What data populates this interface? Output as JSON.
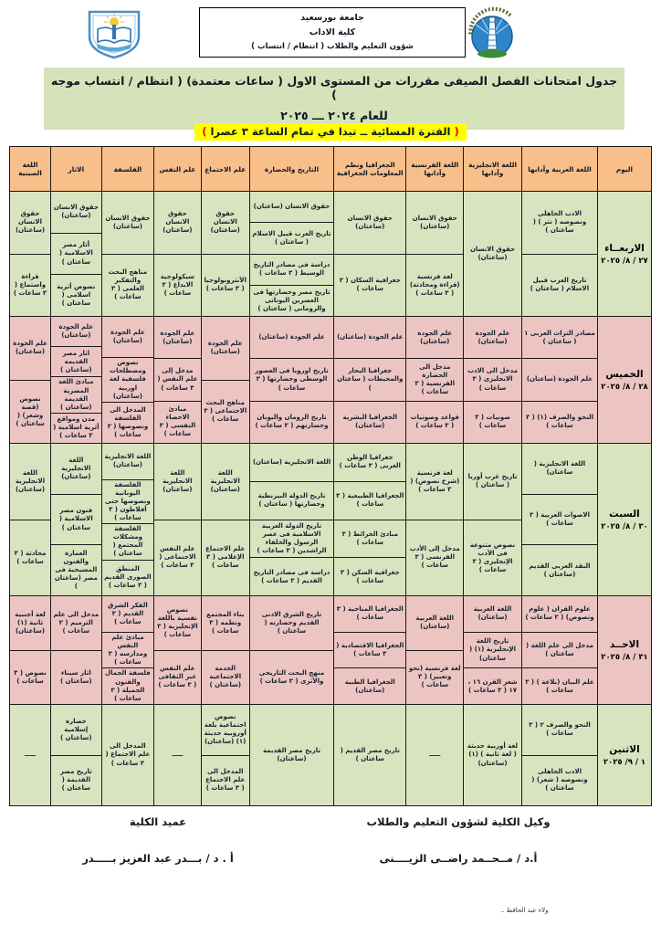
{
  "header": {
    "university": "جامعة بورسعيد",
    "faculty": "كلية الاداب",
    "department": "شؤون التعليم والطلاب ( انتظام / انتساب )"
  },
  "icons": {
    "left_emblem": "university-shield-book-emblem",
    "right_emblem": "faculty-lighthouse-circle-logo"
  },
  "title": {
    "line1": "جدول امتحانات  الفصل الصيفى مقررات من المستوى الاول ( ساعات معتمدة) ( انتظام / انتساب موجه )",
    "line2": "للعام ٢٠٢٤ ـــ ٢٠٢٥",
    "period_open": "(",
    "period_text": " الفترة المسائية ــ تبدا في تمام الساعة ٣ عصرا ",
    "period_close": ")"
  },
  "colors": {
    "header_orange": "#f9bf8b",
    "row_green": "#d8e4c0",
    "row_pink": "#ecc5c3",
    "band_green": "#d6e2ba",
    "highlight_yellow": "#ffff00",
    "paren_red": "#ff0000"
  },
  "table": {
    "day_header": "اليوم",
    "columns": [
      "اللغة العربية وآدابها",
      "اللغة الانجليزية وآدابها",
      "اللغة الفرنسية وآدابها",
      "الجغرافيا ونظم المعلومات الجغرافية",
      "التاريخ والحضارة",
      "علم الاجتماع",
      "علم النفس",
      "الفلسفة",
      "الاثار",
      "اللغة الصينية"
    ],
    "rows": [
      {
        "day": "الاربعــاء",
        "date": "٢٧ / ٨/ ٢٠٢٥",
        "tone": "green",
        "cells": [
          [
            "الادب الجاهلى ونصوصه ( نثر ) ( ساعتان )",
            "تاريخ العرب قبيل الاسلام ( ساعتان )"
          ],
          [
            "حقوق الانسان (ساعتان)"
          ],
          [
            "حقوق الانسان (ساعتان)",
            "لغة فرنسية (قراءة ومحادثة) ( ٣ ساعات )"
          ],
          [
            "حقوق الانسان (ساعتان)",
            "جغرافية السكان ( ٣ ساعات )"
          ],
          [
            "حقوق الانسان (ساعتان)",
            "تاريخ العرب قبيل الاسلام ( ساعتان )",
            "دراسة فى مصادر التاريخ الوسيط ( ٣ ساعات )",
            "تاريخ مصر وحضارتها فى العصرين اليونانى والرومانى ( ساعتان )"
          ],
          [
            "حقوق الانسان (ساعتان)",
            "الأنثروبولوجيا ( ٣ ساعات )"
          ],
          [
            "حقوق الانسان (ساعتان)",
            "سيكولوجية الابداع ( ٣ ساعات )"
          ],
          [
            "حقوق الانسان (ساعتان)",
            "مناهج البحث والتفكير العلمى ( ٣ ساعات )"
          ],
          [
            "حقوق الانسان (ساعتان)",
            "أثار مصر الاسلامية ( ساعتان )",
            "نصوص أثرية اسلامى ( ساعتان )"
          ],
          [
            "حقوق الانسان (ساعتان)",
            "قراءة واستماع ( ٣ ساعات )"
          ]
        ]
      },
      {
        "day": "الخميس",
        "date": "٢٨ / ٨/ ٢٠٢٥",
        "tone": "pink",
        "cells": [
          [
            "مصادر التراث العربى ١ ( ساعتان )",
            "علم الجودة (ساعتان)",
            "النحو والصرف (١) ( ٣ ساعات )"
          ],
          [
            "علم الجودة (ساعتان)",
            "مدخل الى الادب الانجليزى ( ٣ ساعات )",
            "صوتيات ( ٣ ساعات )"
          ],
          [
            "علم الجودة (ساعتان)",
            "مدخل الى الحضارة الفرنسية ( ٣ ساعات )",
            "قواعد وصوتيات ( ٣ ساعات )"
          ],
          [
            "علم الجودة (ساعتان)",
            "جغرافيا البحار والمحيطات ( ساعتان )",
            "الجغرافيا البشرية (ساعتان)"
          ],
          [
            "علم الجودة (ساعتان)",
            "تاريخ اوروبا فى العصور الوسطى وحضارتها ( ٣ ساعات )",
            "تاريخ الرومان واليونان وحضارتهم ( ٣ ساعات )"
          ],
          [
            "علم الجودة (ساعتان)",
            "مناهج البحث الاجتماعى ( ٣ ساعات )"
          ],
          [
            "علم الجودة (ساعتان)",
            "مدخل إلى علم النفس ( ٣ ساعات )",
            "مبادئ الاحصاء النفسى ( ٣ ساعات )"
          ],
          [
            "علم الجودة (ساعتان)",
            "نصوص ومصطلحات فلسفية لغة اوربية (ساعتان)",
            "المدخل الى الفلسفة ونصوصها ( ٣ ساعات )"
          ],
          [
            "علم الجودة (ساعتان)",
            "اثار مصر القديمة (ساعتان )",
            "مبادئ اللغة المصرية القديمة (ساعتان )",
            "مدن ومواقع أثرية اسلامية ( ٣ ساعات )"
          ],
          [
            "علم الجودة (ساعتان)",
            "نصوص (قصة وشعر) ( ساعتان )"
          ]
        ]
      },
      {
        "day": "السبت",
        "date": "٣٠ / ٨/ ٢٠٢٥",
        "tone": "green",
        "cells": [
          [
            "اللغة الانجليزية ( ساعتان)",
            "الاصوات العربية ( ٣ ساعات )",
            "النقد العربى القديم (ساعتان )"
          ],
          [
            "تاريخ غرب أوربا ( ساعتان )",
            "نصوص متنوعة فى الأدب الإنجليزى ( ٣ ساعات )"
          ],
          [
            "لغة فرنسية (شرح نصوص) ( ٣ ساعات )",
            "مدخل إلى الأدب الفرنسى ( ٣ ساعات )"
          ],
          [
            "جغرافيا الوطن العربى ( ٣ ساعات )",
            "الجغرافيا الطبيعية ( ٣ ساعات )",
            "مبادئ الخرائط ( ٣ ساعات )",
            "جغرافية السكن ( ٣ ساعات )"
          ],
          [
            "اللغة الانجليزية (ساعتان)",
            "تاريخ الدولة البيزنطية وحضارتها ( ساعتان )",
            "تاريخ الدولة العربية الاسلامية فى عصر الرسول والخلفاء الراشدين ( ٣ ساعات )",
            "دراسة فى مصادر التاريخ القديم ( ٣ ساعات )"
          ],
          [
            "اللغة الانجليزية (ساعتان)",
            "علم الاجتماع الإعلامى ( ٣ ساعات )"
          ],
          [
            "اللغة الانجليزية (ساعتان)",
            "علم النفس الاجتماعى ( ٣ ساعات )"
          ],
          [
            "اللغة الانجليزية (ساعتان)",
            "الفلسفة اليونانية ونصوصها حتى أفلاطون ( ٣ ساعات )",
            "الفلسفة ومشكلات المجتمع ( ساعتان )",
            "المنطق الصورى القديم ( ٣ ساعات )"
          ],
          [
            "اللغة الانجليزية (ساعتان)",
            "فنون مصر الاسلامية ( ساعتان )",
            "العمارة والفنون المسيحية فى مصر (ساعتان )"
          ],
          [
            "اللغة الانجليزية (ساعتان)",
            "محادثة ( ٣ ساعات )"
          ]
        ]
      },
      {
        "day": "الاحــد",
        "date": "٣١ / ٨/ ٢٠٢٥",
        "tone": "pink",
        "cells": [
          [
            "علوم القران ( علوم ونصوص) ( ٣ ساعات )",
            "مدخل الى علم اللغة ( ساعتان )",
            "علم البيان (بلاغة ) ( ٣ ساعات )"
          ],
          [
            "اللغة العربية (ساعتان)",
            "تاريخ اللغة الإنجليزية (١) ( ساعتان)",
            "شعر القرن ١٦ ، ١٧ ( ٣ ساعات )"
          ],
          [
            "اللغة العربية (ساعتان)",
            "لغة فرنسية (نحو وتعبير) ( ٣ ساعات )"
          ],
          [
            "الجغرافيا المناخية ( ٣ ساعات )",
            "الجغرافيا الاقتصادية ( ٣ ساعات )",
            "الجغرافيا الطبية (ساعتان)"
          ],
          [
            "تاريخ الشرق الادنى القديم وحضارته ( ساعتان )",
            "منهج البحث التاريخى والأثرى ( ٣ ساعات )"
          ],
          [
            "بناء المجتمع ونظمه ( ٣ ساعات )",
            "الخدمة الاجتماعية (ساعتان )"
          ],
          [
            "نصوص نفسية باللغة الإنجليزية ( ٣ ساعات )",
            "علم النفس عبر الثقافى ( ٣ ساعات )"
          ],
          [
            "الفكر الشرق القديم ( ٣ ساعات )",
            "مبادئ علم النفس ومدارسه ( ٣ ساعات )",
            "فلسفة الجمال والفنون الجميلة ( ٣ ساعات )"
          ],
          [
            "مدخل الى علم الترميم ( ٣ ساعات )",
            "اثار سيناء (ساعتان )"
          ],
          [
            "لغة أجنبية ثانية (١) (ساعتان)",
            "نصوص ( ٣ ساعات )"
          ]
        ]
      },
      {
        "day": "الاثنين",
        "date": "١ / ٩/ ٢٠٢٥",
        "tone": "green",
        "cells": [
          [
            "النحو والصرف ٢ ( ٣ ساعات )",
            "الادب الجاهلى ونصوصه ( شعر) ( ساعتان )"
          ],
          [
            "لغة أوربية حديثة ( لغة ثانية ) (١) (ساعتان)"
          ],
          [
            "ـــــ"
          ],
          [
            "تاريخ مصر القديم ( ساعتان )"
          ],
          [
            "تاريخ مصر القديمة (ساعتان)"
          ],
          [
            "نصوص اجتماعية بلغة أوروبية حديثة (١) (ساعتان)",
            "المدخل الى علم الاجتماع ( ٣ ساعات )"
          ],
          [
            "ـــــ"
          ],
          [
            "المدخل الى علم الاجتماع ( ٣ ساعات )"
          ],
          [
            "حضارة إسلامية (ساعتان )",
            "تاريخ مصر القديمة ( ساعتان )"
          ],
          [
            "ـــــ"
          ]
        ]
      }
    ]
  },
  "footer": {
    "vice_dean_title": "وكيل الكلية لشؤون التعليم والطلاب",
    "vice_dean_name": "أ.د /  مــحــمد راضــى الزيــــنى",
    "dean_title": "عميد الكلية",
    "dean_name": "أ . د / بـــدر عبد العزيز بـــــدر",
    "page_note": "ولاء عبد الحافظ .."
  }
}
